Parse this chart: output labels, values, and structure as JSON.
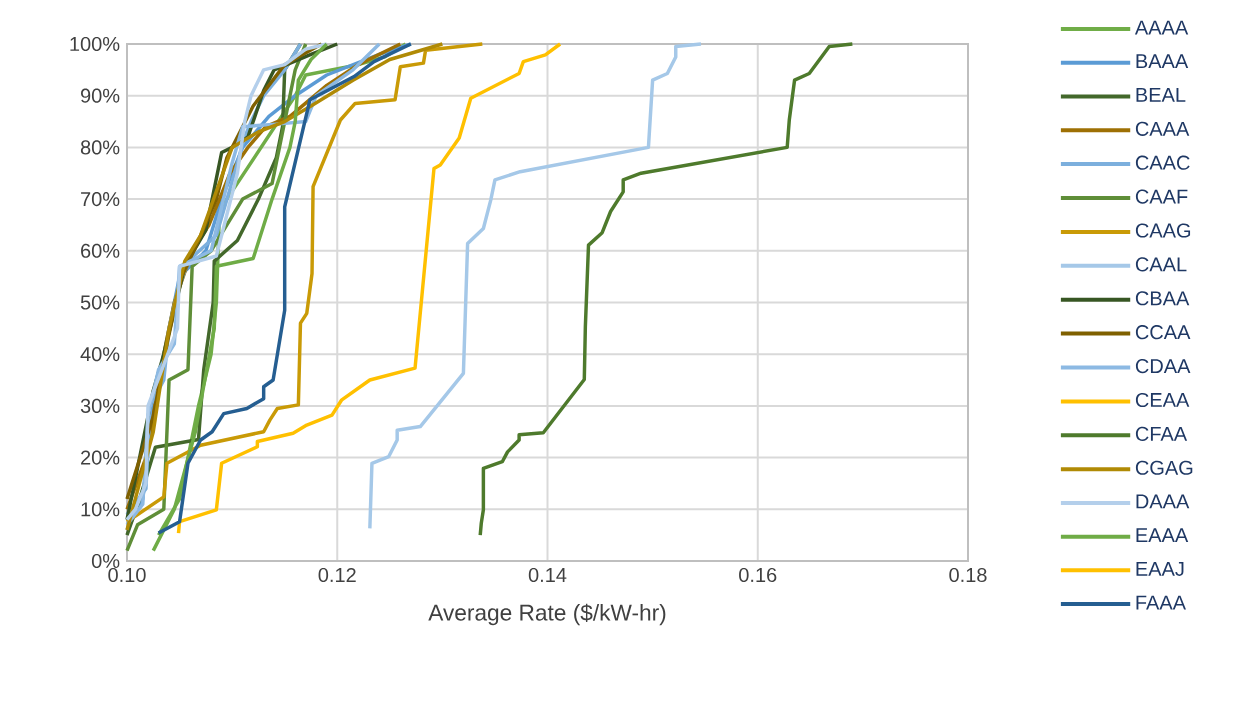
{
  "chart_data": {
    "type": "line",
    "xlabel": "Average Rate ($/kW-hr)",
    "xlim": [
      0.1,
      0.18
    ],
    "ylim": [
      0,
      100
    ],
    "xticks": [
      {
        "value": 0.1,
        "label": "0.10"
      },
      {
        "value": 0.12,
        "label": "0.12"
      },
      {
        "value": 0.14,
        "label": "0.14"
      },
      {
        "value": 0.16,
        "label": "0.16"
      },
      {
        "value": 0.18,
        "label": "0.18"
      }
    ],
    "yticks": [
      {
        "value": 0,
        "label": "0%"
      },
      {
        "value": 10,
        "label": "10%"
      },
      {
        "value": 20,
        "label": "20%"
      },
      {
        "value": 30,
        "label": "30%"
      },
      {
        "value": 40,
        "label": "40%"
      },
      {
        "value": 50,
        "label": "50%"
      },
      {
        "value": 60,
        "label": "60%"
      },
      {
        "value": 70,
        "label": "70%"
      },
      {
        "value": 80,
        "label": "80%"
      },
      {
        "value": 90,
        "label": "90%"
      },
      {
        "value": 100,
        "label": "100%"
      }
    ],
    "grid": true,
    "legend": "right",
    "line_style": "solid",
    "marker": "none",
    "series": [
      {
        "name": "AAAA",
        "color": "#70ad47",
        "x": [
          0.103,
          0.105,
          0.1068,
          0.108,
          0.1085,
          0.1088,
          0.1095,
          0.116,
          0.117,
          0.122,
          0.1245,
          0.1265
        ],
        "values": [
          5,
          12,
          30,
          40,
          50,
          68,
          70,
          90,
          94,
          96,
          97.5,
          100
        ]
      },
      {
        "name": "BAAA",
        "color": "#5b9bd5",
        "x": [
          0.1,
          0.1015,
          0.1025,
          0.104,
          0.105,
          0.1075,
          0.109,
          0.111,
          0.1135,
          0.116,
          0.119,
          0.124,
          0.127
        ],
        "values": [
          6,
          12,
          30,
          45,
          55,
          60,
          70,
          80,
          86,
          90,
          94,
          98,
          100
        ]
      },
      {
        "name": "BEAL",
        "color": "#43682b",
        "x": [
          0.1,
          0.1012,
          0.1027,
          0.1068,
          0.1073,
          0.1082,
          0.1083,
          0.1105,
          0.1125,
          0.1142,
          0.1148,
          0.115,
          0.1165
        ],
        "values": [
          5,
          12,
          22,
          23.5,
          37,
          50,
          58,
          62,
          70,
          78,
          84,
          95,
          100
        ]
      },
      {
        "name": "CAAA",
        "color": "#9e7004",
        "x": [
          0.1,
          0.1018,
          0.1035,
          0.1045,
          0.1062,
          0.1078,
          0.1098,
          0.1115,
          0.1132,
          0.1155,
          0.119,
          0.122,
          0.126
        ],
        "values": [
          10,
          20,
          40,
          50,
          60,
          65,
          75,
          80,
          84,
          86,
          92,
          96,
          100
        ]
      },
      {
        "name": "CAAC",
        "color": "#7cafdd",
        "x": [
          0.1,
          0.1018,
          0.1022,
          0.1035,
          0.104,
          0.1048,
          0.1058,
          0.1085,
          0.1098,
          0.1112,
          0.1118,
          0.113,
          0.115,
          0.1165
        ],
        "values": [
          9,
          14,
          30,
          35,
          45,
          52,
          58,
          63,
          72,
          82,
          85,
          90,
          95,
          100
        ]
      },
      {
        "name": "CAAF",
        "color": "#5f8e38",
        "x": [
          0.1,
          0.101,
          0.1035,
          0.104,
          0.1058,
          0.1062,
          0.108,
          0.1095,
          0.111,
          0.1138,
          0.115,
          0.116,
          0.117
        ],
        "values": [
          2,
          7,
          10,
          35,
          37,
          57,
          60,
          65,
          70,
          73,
          85,
          95,
          100
        ]
      },
      {
        "name": "CAAG",
        "color": "#c99a06",
        "x": [
          0.1,
          0.1035,
          0.1038,
          0.107,
          0.113,
          0.1136,
          0.1143,
          0.1163,
          0.1165,
          0.1171,
          0.1176,
          0.1177,
          0.1203,
          0.1217,
          0.1255,
          0.126,
          0.1282,
          0.1284,
          0.1338
        ],
        "values": [
          7.6,
          12.4,
          18.9,
          22.4,
          25,
          27.3,
          29.5,
          30.2,
          46,
          47.9,
          55.6,
          72.4,
          85.3,
          88.5,
          89.2,
          95.6,
          96.3,
          98.8,
          100
        ]
      },
      {
        "name": "CAAL",
        "color": "#a5c8e8",
        "x": [
          0.1231,
          0.1233,
          0.1249,
          0.1257,
          0.1257,
          0.1279,
          0.132,
          0.1324,
          0.1339,
          0.1346,
          0.135,
          0.1374,
          0.1496,
          0.15,
          0.1514,
          0.1522,
          0.1522,
          0.1546
        ],
        "values": [
          6.3,
          18.9,
          20.2,
          23.4,
          25.3,
          26,
          36.3,
          61.4,
          64.3,
          69.8,
          73.7,
          75.3,
          80,
          93,
          94.3,
          97.5,
          99.5,
          100
        ]
      },
      {
        "name": "CBAA",
        "color": "#375623",
        "x": [
          0.1,
          0.1022,
          0.1025,
          0.1035,
          0.1055,
          0.1075,
          0.109,
          0.11,
          0.1115,
          0.113,
          0.114,
          0.1175,
          0.12
        ],
        "values": [
          8,
          30,
          33,
          40,
          57,
          64,
          79,
          80,
          82,
          91,
          95,
          98,
          100
        ]
      },
      {
        "name": "CCAA",
        "color": "#7f6000",
        "x": [
          0.1,
          0.1025,
          0.1038,
          0.1052,
          0.1068,
          0.1085,
          0.1095,
          0.112,
          0.1135,
          0.115,
          0.1185
        ],
        "values": [
          12,
          28,
          42,
          55,
          62,
          70,
          78,
          88,
          92,
          96,
          100
        ]
      },
      {
        "name": "CDAA",
        "color": "#8cb9e3",
        "x": [
          0.1,
          0.1015,
          0.102,
          0.103,
          0.1045,
          0.105,
          0.108,
          0.11,
          0.111,
          0.1142,
          0.117,
          0.118,
          0.1215,
          0.124
        ],
        "values": [
          7,
          11,
          28,
          37,
          42,
          57,
          60,
          77,
          84,
          84.5,
          85,
          90,
          95,
          100
        ]
      },
      {
        "name": "CEAA",
        "color": "#ffc000"
      },
      {
        "name": "CFAA",
        "color": "#4e7a2c",
        "x": [
          0.1336,
          0.1337,
          0.1339,
          0.1339,
          0.1357,
          0.1362,
          0.1373,
          0.1373,
          0.1396,
          0.1435,
          0.1436,
          0.1439,
          0.1452,
          0.146,
          0.1472,
          0.1472,
          0.1489,
          0.1628,
          0.163,
          0.1635,
          0.1649,
          0.1668,
          0.169
        ],
        "values": [
          5,
          7.3,
          9.9,
          17.9,
          19.2,
          21.1,
          23.4,
          24.4,
          24.8,
          35.1,
          45.3,
          61.1,
          63.5,
          67.6,
          71.4,
          73.7,
          75,
          80,
          85.3,
          93,
          94.3,
          99.5,
          100
        ]
      },
      {
        "name": "CGAG",
        "color": "#b08a05",
        "x": [
          0.1,
          0.1025,
          0.104,
          0.1055,
          0.107,
          0.11,
          0.1125,
          0.115,
          0.1175,
          0.1215,
          0.125,
          0.13
        ],
        "values": [
          6,
          25,
          45,
          58,
          63,
          80,
          83,
          85,
          88,
          93,
          97,
          100
        ]
      },
      {
        "name": "DAAA",
        "color": "#b4cfeb",
        "x": [
          0.1,
          0.1008,
          0.1018,
          0.102,
          0.1035,
          0.1048,
          0.105,
          0.1085,
          0.1105,
          0.1112,
          0.1118,
          0.113,
          0.115,
          0.117,
          0.119
        ],
        "values": [
          8,
          10,
          15,
          30,
          38,
          45,
          57,
          59,
          75,
          85,
          90,
          95,
          96,
          99,
          100
        ]
      },
      {
        "name": "EAAA",
        "color": "#6fac46",
        "x": [
          0.1025,
          0.1045,
          0.1065,
          0.1083,
          0.1085,
          0.112,
          0.1138,
          0.1155,
          0.116,
          0.1163,
          0.1175,
          0.119
        ],
        "values": [
          2,
          10,
          25,
          45,
          57,
          58.5,
          70,
          80,
          85,
          93,
          97,
          100
        ]
      },
      {
        "name": "EAAJ",
        "color": "#ffc000",
        "x": [
          0.1049,
          0.105,
          0.1085,
          0.109,
          0.1124,
          0.1124,
          0.1158,
          0.1171,
          0.1195,
          0.1204,
          0.1231,
          0.1274,
          0.1292,
          0.1298,
          0.1316,
          0.1327,
          0.1373,
          0.1377,
          0.1398,
          0.1412
        ],
        "values": [
          5.4,
          7.6,
          9.9,
          18.9,
          22.1,
          23.1,
          24.7,
          26.3,
          28.2,
          31.1,
          35,
          37.3,
          75.9,
          76.6,
          81.8,
          89.5,
          94.3,
          96.6,
          97.9,
          100
        ]
      },
      {
        "name": "FAAA",
        "color": "#255e91",
        "x": [
          0.103,
          0.105,
          0.1058,
          0.107,
          0.1081,
          0.1092,
          0.1114,
          0.113,
          0.113,
          0.1139,
          0.115,
          0.115,
          0.1174,
          0.1216,
          0.1235,
          0.127
        ],
        "values": [
          5.4,
          7.6,
          18.9,
          23.4,
          25,
          28.5,
          29.5,
          31.4,
          33.7,
          35,
          48.5,
          68.5,
          89.2,
          93.7,
          96.6,
          100
        ]
      }
    ]
  }
}
